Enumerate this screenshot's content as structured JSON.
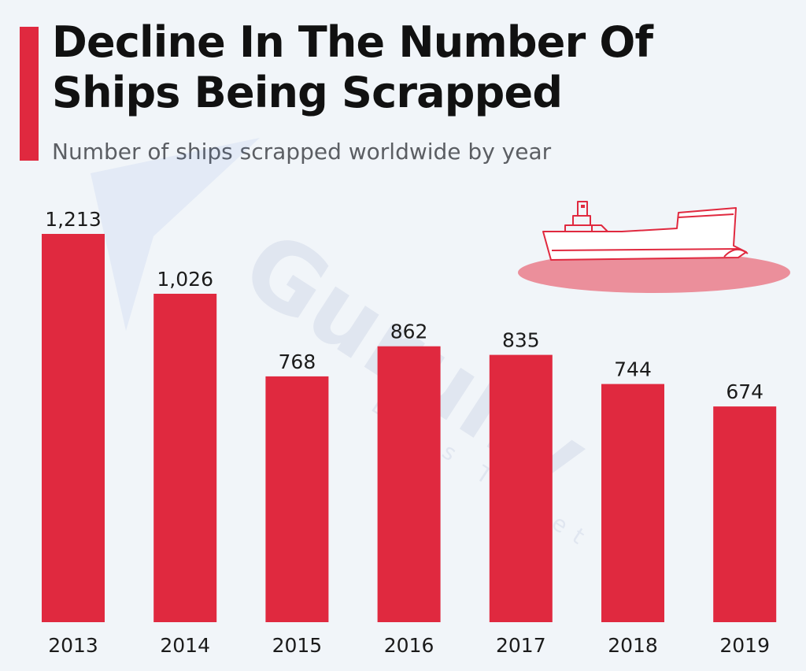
{
  "header": {
    "title": "Decline In The Number Of Ships Being Scrapped",
    "subtitle": "Number of ships scrapped worldwide by year"
  },
  "watermark": {
    "brand": "Gurully",
    "tagline": "Let's Target"
  },
  "colors": {
    "accent": "#e0293f",
    "bar": "#e0293f",
    "background": "#f1f5f9",
    "ship_outline": "#e0293f",
    "water": "#eb8f9b"
  },
  "icons": [
    "cargo-ship-icon"
  ],
  "chart_data": {
    "type": "bar",
    "title": "Decline In The Number Of Ships Being Scrapped",
    "subtitle": "Number of ships scrapped worldwide by year",
    "categories": [
      "2013",
      "2014",
      "2015",
      "2016",
      "2017",
      "2018",
      "2019"
    ],
    "values": [
      1213,
      1026,
      768,
      862,
      835,
      744,
      674
    ],
    "value_labels": [
      "1,213",
      "1,026",
      "768",
      "862",
      "835",
      "744",
      "674"
    ],
    "xlabel": "",
    "ylabel": "",
    "ylim": [
      0,
      1213
    ],
    "grid": false,
    "legend": "none"
  }
}
